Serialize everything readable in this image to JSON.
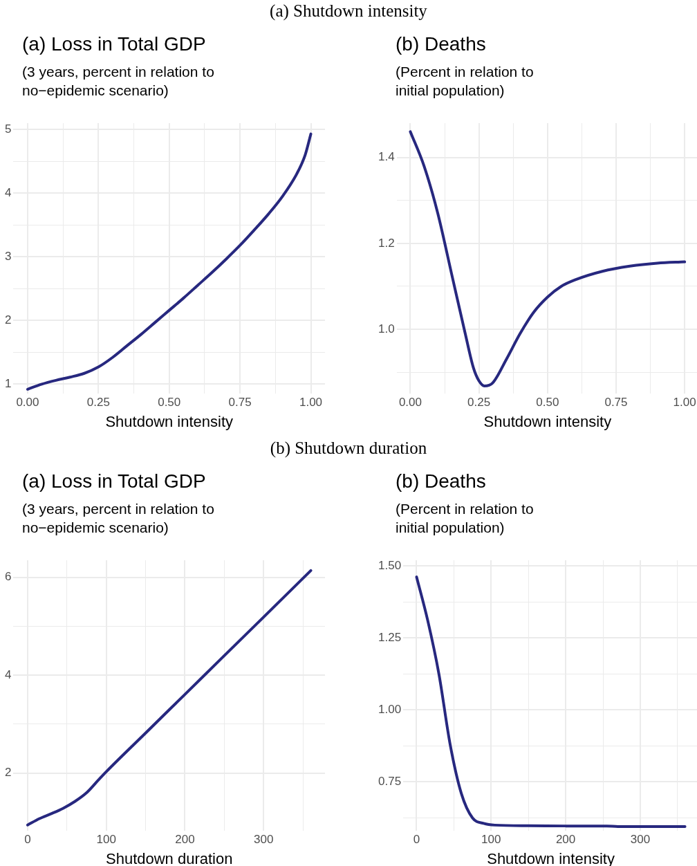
{
  "chart_data": [
    {
      "type": "line",
      "annotations": [
        "(a) Shutdown intensity"
      ],
      "title": "(a) Loss in Total GDP",
      "subtitle": "(3 years, percent in relation to\nno−epidemic scenario)",
      "xlabel": "Shutdown intensity",
      "color": "#27287f",
      "grid": true,
      "x": [
        0,
        0.05,
        0.1,
        0.15,
        0.2,
        0.25,
        0.3,
        0.35,
        0.4,
        0.45,
        0.5,
        0.55,
        0.6,
        0.65,
        0.7,
        0.75,
        0.8,
        0.85,
        0.9,
        0.95,
        0.98,
        1.0
      ],
      "values": [
        0.92,
        1.0,
        1.06,
        1.11,
        1.17,
        1.27,
        1.42,
        1.6,
        1.78,
        1.97,
        2.16,
        2.35,
        2.55,
        2.75,
        2.96,
        3.18,
        3.42,
        3.67,
        3.95,
        4.3,
        4.6,
        4.93
      ],
      "xlim": [
        -0.05,
        1.05
      ],
      "xticks": [
        {
          "value": 0,
          "label": "0.00"
        },
        {
          "value": 0.125,
          "label": null
        },
        {
          "value": 0.25,
          "label": "0.25"
        },
        {
          "value": 0.375,
          "label": null
        },
        {
          "value": 0.5,
          "label": "0.50"
        },
        {
          "value": 0.625,
          "label": null
        },
        {
          "value": 0.75,
          "label": "0.75"
        },
        {
          "value": 0.875,
          "label": null
        },
        {
          "value": 1,
          "label": "1.00"
        }
      ],
      "ylim": [
        0.85,
        5.1
      ],
      "yticks": [
        1,
        {
          "value": 1.5,
          "label": null
        },
        2,
        {
          "value": 2.5,
          "label": null
        },
        3,
        {
          "value": 3.5,
          "label": null
        },
        4,
        {
          "value": 4.5,
          "label": null
        },
        5
      ]
    },
    {
      "type": "line",
      "title": "(b) Deaths",
      "subtitle": "(Percent in relation to\ninitial population)",
      "xlabel": "Shutdown intensity",
      "color": "#27287f",
      "grid": true,
      "x": [
        0,
        0.05,
        0.1,
        0.15,
        0.2,
        0.23,
        0.25,
        0.27,
        0.3,
        0.35,
        0.4,
        0.45,
        0.5,
        0.55,
        0.6,
        0.7,
        0.8,
        0.9,
        1.0
      ],
      "values": [
        1.46,
        1.38,
        1.27,
        1.13,
        0.99,
        0.91,
        0.88,
        0.868,
        0.875,
        0.93,
        0.99,
        1.04,
        1.075,
        1.1,
        1.115,
        1.135,
        1.147,
        1.154,
        1.157
      ],
      "xlim": [
        -0.05,
        1.05
      ],
      "xticks": [
        {
          "value": 0,
          "label": "0.00"
        },
        {
          "value": 0.125,
          "label": null
        },
        {
          "value": 0.25,
          "label": "0.25"
        },
        {
          "value": 0.375,
          "label": null
        },
        {
          "value": 0.5,
          "label": "0.50"
        },
        {
          "value": 0.625,
          "label": null
        },
        {
          "value": 0.75,
          "label": "0.75"
        },
        {
          "value": 0.875,
          "label": null
        },
        {
          "value": 1,
          "label": "1.00"
        }
      ],
      "ylim": [
        0.85,
        1.48
      ],
      "yticks": [
        {
          "value": 0.9,
          "label": null
        },
        {
          "value": 1.0,
          "label": "1.0"
        },
        {
          "value": 1.1,
          "label": null
        },
        {
          "value": 1.2,
          "label": "1.2"
        },
        {
          "value": 1.3,
          "label": null
        },
        {
          "value": 1.4,
          "label": "1.4"
        }
      ]
    },
    {
      "type": "line",
      "annotations": [
        "(b) Shutdown duration"
      ],
      "title": "(a) Loss in Total GDP",
      "subtitle": "(3 years, percent in relation to\nno−epidemic scenario)",
      "xlabel": "Shutdown duration",
      "color": "#27287f",
      "grid": true,
      "x": [
        0,
        15,
        30,
        45,
        60,
        75,
        90,
        100,
        150,
        200,
        250,
        300,
        360
      ],
      "values": [
        0.94,
        1.07,
        1.17,
        1.28,
        1.42,
        1.6,
        1.86,
        2.03,
        2.82,
        3.61,
        4.4,
        5.19,
        6.14
      ],
      "xlim": [
        -18,
        378
      ],
      "xticks": [
        0,
        {
          "value": 50,
          "label": null
        },
        100,
        {
          "value": 150,
          "label": null
        },
        200,
        {
          "value": 250,
          "label": null
        },
        300,
        {
          "value": 350,
          "label": null
        }
      ],
      "ylim": [
        0.82,
        6.35
      ],
      "yticks": [
        2,
        {
          "value": 3,
          "label": null
        },
        4,
        {
          "value": 5,
          "label": null
        },
        6
      ]
    },
    {
      "type": "line",
      "title": "(b) Deaths",
      "subtitle": "(Percent in relation to\ninitial population)",
      "xlabel": "Shutdown intensity",
      "color": "#27287f",
      "grid": true,
      "x": [
        0,
        15,
        30,
        45,
        60,
        75,
        90,
        105,
        150,
        200,
        255,
        270,
        300,
        360
      ],
      "values": [
        1.462,
        1.31,
        1.124,
        0.88,
        0.71,
        0.625,
        0.606,
        0.6,
        0.598,
        0.597,
        0.597,
        0.595,
        0.595,
        0.595
      ],
      "xlim": [
        -18,
        378
      ],
      "xticks": [
        0,
        {
          "value": 50,
          "label": null
        },
        100,
        {
          "value": 150,
          "label": null
        },
        200,
        {
          "value": 250,
          "label": null
        },
        300,
        {
          "value": 350,
          "label": null
        }
      ],
      "ylim": [
        0.58,
        1.52
      ],
      "yticks": [
        {
          "value": 0.625,
          "label": null
        },
        {
          "value": 0.75,
          "label": "0.75"
        },
        {
          "value": 0.875,
          "label": null
        },
        {
          "value": 1.0,
          "label": "1.00"
        },
        {
          "value": 1.125,
          "label": null
        },
        {
          "value": 1.25,
          "label": "1.25"
        },
        {
          "value": 1.375,
          "label": null
        },
        {
          "value": 1.5,
          "label": "1.50"
        }
      ]
    }
  ]
}
